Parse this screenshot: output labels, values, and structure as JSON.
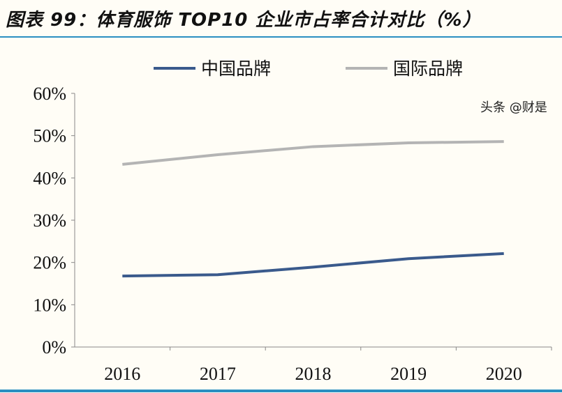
{
  "title": "图表 99：体育服饰 TOP10 企业市占率合计对比（%）",
  "watermark": "头条 @财是",
  "chart_data": {
    "type": "line",
    "categories": [
      "2016",
      "2017",
      "2018",
      "2019",
      "2020"
    ],
    "series": [
      {
        "name": "中国品牌",
        "color": "#3a5a8c",
        "values": [
          16.8,
          17.1,
          18.9,
          20.9,
          22.1
        ]
      },
      {
        "name": "国际品牌",
        "color": "#b4b4b4",
        "values": [
          43.2,
          45.5,
          47.4,
          48.3,
          48.6
        ]
      }
    ],
    "ylim": [
      0,
      60
    ],
    "yticks": [
      "0%",
      "10%",
      "20%",
      "30%",
      "40%",
      "50%",
      "60%"
    ],
    "grid": false,
    "legend": "top"
  }
}
